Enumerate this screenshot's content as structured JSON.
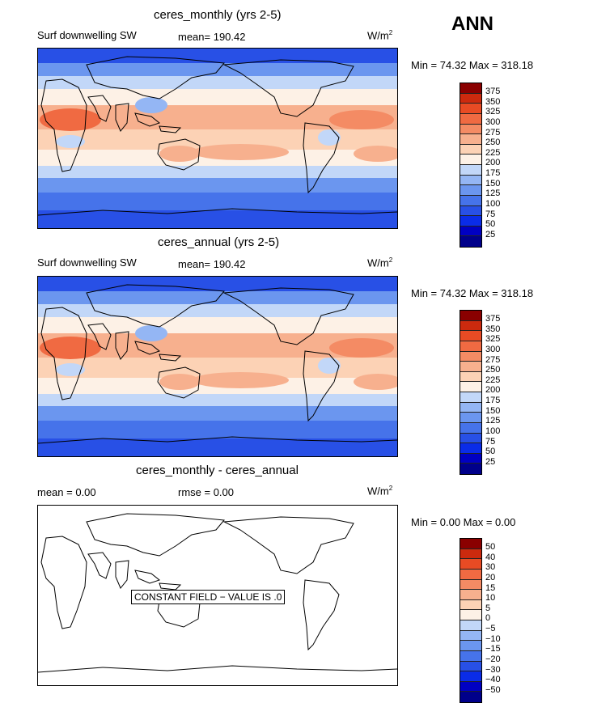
{
  "season": "ANN",
  "colors": [
    "#00008a",
    "#0000c2",
    "#0a2ce8",
    "#2850e6",
    "#4673ea",
    "#6b96ef",
    "#94b6f4",
    "#c2d7f8",
    "#fdf1e6",
    "#fcd2b5",
    "#f7b08e",
    "#f48b64",
    "#f06a42",
    "#e84b24",
    "#cc2a0e",
    "#8a0000"
  ],
  "panels": [
    {
      "title": "ceres_monthly (yrs 2-5)",
      "left_label": "Surf downwelling SW",
      "stat_text": "mean=  190.42",
      "units_base": "W/m",
      "units_exp": "2",
      "minmax": "Min =   74.32  Max = 318.18",
      "levels": [
        "375",
        "350",
        "325",
        "300",
        "275",
        "250",
        "225",
        "200",
        "175",
        "150",
        "125",
        "100",
        "75",
        "50",
        "25"
      ],
      "field": "diff_none"
    },
    {
      "title": "ceres_annual (yrs 2-5)",
      "left_label": "Surf downwelling SW",
      "stat_text": "mean=  190.42",
      "units_base": "W/m",
      "units_exp": "2",
      "minmax": "Min =   74.32  Max = 318.18",
      "levels": [
        "375",
        "350",
        "325",
        "300",
        "275",
        "250",
        "225",
        "200",
        "175",
        "150",
        "125",
        "100",
        "75",
        "50",
        "25"
      ],
      "field": "diff_none"
    },
    {
      "title": "ceres_monthly - ceres_annual",
      "left_label": "mean =     0.00",
      "stat_text": "rmse =     0.00",
      "units_base": "W/m",
      "units_exp": "2",
      "minmax": "Min =    0.00  Max =    0.00",
      "levels": [
        "50",
        "40",
        "30",
        "20",
        "15",
        "10",
        "5",
        "0",
        "−5",
        "−10",
        "−15",
        "−20",
        "−30",
        "−40",
        "−50"
      ],
      "note": "CONSTANT FIELD − VALUE IS .0"
    }
  ]
}
